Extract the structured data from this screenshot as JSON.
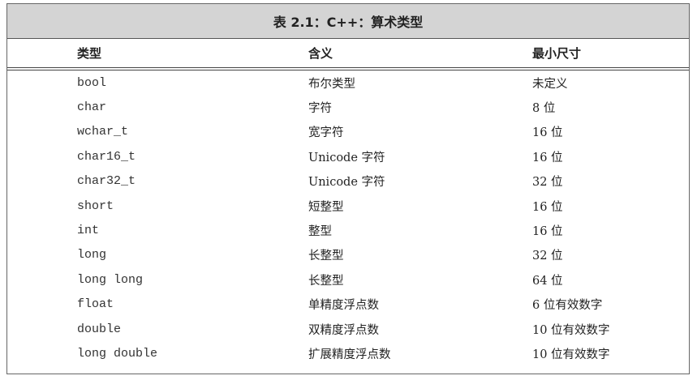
{
  "title": "表 2.1：C++：算术类型",
  "headers": [
    "类型",
    "含义",
    "最小尺寸"
  ],
  "rows": [
    [
      "bool",
      "布尔类型",
      "未定义"
    ],
    [
      "char",
      "字符",
      "8 位"
    ],
    [
      "wchar_t",
      "宽字符",
      "16 位"
    ],
    [
      "char16_t",
      "Unicode 字符",
      "16 位"
    ],
    [
      "char32_t",
      "Unicode 字符",
      "32 位"
    ],
    [
      "short",
      "短整型",
      "16 位"
    ],
    [
      "int",
      "整型",
      "16 位"
    ],
    [
      "long",
      "长整型",
      "32 位"
    ],
    [
      "long long",
      "长整型",
      "64 位"
    ],
    [
      "float",
      "单精度浮点数",
      "6 位有效数字"
    ],
    [
      "double",
      "双精度浮点数",
      "10 位有效数字"
    ],
    [
      "long double",
      "扩展精度浮点数",
      "10 位有效数字"
    ]
  ]
}
